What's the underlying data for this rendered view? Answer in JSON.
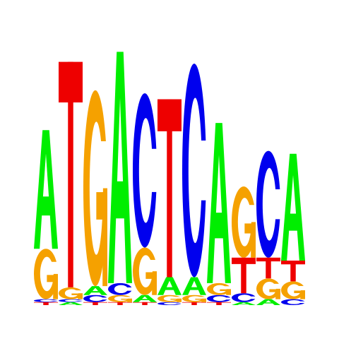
{
  "colors": {
    "A": "#00ee00",
    "C": "#0000ee",
    "G": "#f5a100",
    "T": "#ee0000"
  },
  "motif": {
    "positions": [
      {
        "stack": [
          {
            "b": "T",
            "h": 0.05
          },
          {
            "b": "C",
            "h": 0.05
          },
          {
            "b": "G",
            "h": 0.85
          },
          {
            "b": "A",
            "h": 2.0
          }
        ]
      },
      {
        "stack": [
          {
            "b": "A",
            "h": 0.05
          },
          {
            "b": "C",
            "h": 0.05
          },
          {
            "b": "G",
            "h": 0.2
          },
          {
            "b": "T",
            "h": 3.8
          }
        ]
      },
      {
        "stack": [
          {
            "b": "T",
            "h": 0.05
          },
          {
            "b": "C",
            "h": 0.12
          },
          {
            "b": "A",
            "h": 0.15
          },
          {
            "b": "G",
            "h": 3.3
          }
        ]
      },
      {
        "stack": [
          {
            "b": "T",
            "h": 0.05
          },
          {
            "b": "G",
            "h": 0.12
          },
          {
            "b": "C",
            "h": 0.2
          },
          {
            "b": "A",
            "h": 3.9
          }
        ]
      },
      {
        "stack": [
          {
            "b": "T",
            "h": 0.05
          },
          {
            "b": "A",
            "h": 0.12
          },
          {
            "b": "G",
            "h": 0.8
          },
          {
            "b": "C",
            "h": 2.6
          }
        ]
      },
      {
        "stack": [
          {
            "b": "C",
            "h": 0.05
          },
          {
            "b": "G",
            "h": 0.12
          },
          {
            "b": "A",
            "h": 0.3
          },
          {
            "b": "T",
            "h": 3.0
          }
        ]
      },
      {
        "stack": [
          {
            "b": "T",
            "h": 0.05
          },
          {
            "b": "G",
            "h": 0.12
          },
          {
            "b": "A",
            "h": 0.3
          },
          {
            "b": "C",
            "h": 3.6
          }
        ]
      },
      {
        "stack": [
          {
            "b": "T",
            "h": 0.05
          },
          {
            "b": "C",
            "h": 0.12
          },
          {
            "b": "G",
            "h": 0.2
          },
          {
            "b": "A",
            "h": 2.7
          }
        ]
      },
      {
        "stack": [
          {
            "b": "A",
            "h": 0.05
          },
          {
            "b": "C",
            "h": 0.15
          },
          {
            "b": "T",
            "h": 0.6
          },
          {
            "b": "G",
            "h": 1.2
          }
        ]
      },
      {
        "stack": [
          {
            "b": "A",
            "h": 0.1
          },
          {
            "b": "G",
            "h": 0.35
          },
          {
            "b": "T",
            "h": 0.35
          },
          {
            "b": "C",
            "h": 1.8
          }
        ]
      },
      {
        "stack": [
          {
            "b": "C",
            "h": 0.1
          },
          {
            "b": "G",
            "h": 0.3
          },
          {
            "b": "T",
            "h": 0.35
          },
          {
            "b": "A",
            "h": 1.8
          }
        ]
      }
    ]
  }
}
